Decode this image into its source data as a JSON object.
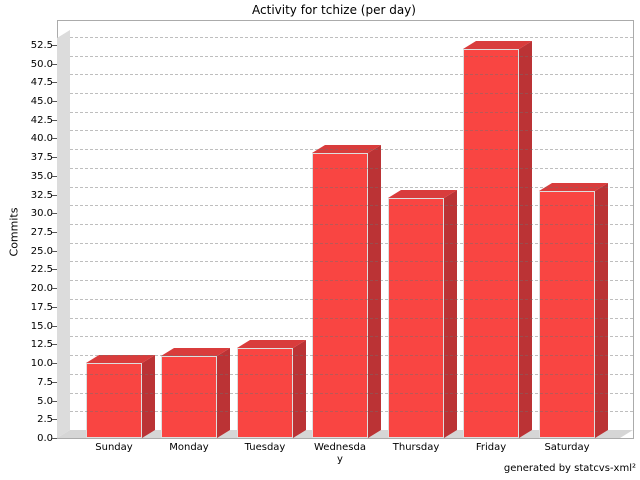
{
  "chart_data": {
    "type": "bar",
    "title": "Activity for tchize (per day)",
    "ylabel": "Commits",
    "xlabel": "",
    "categories": [
      "Sunday",
      "Monday",
      "Tuesday",
      "Wednesday",
      "Thursday",
      "Friday",
      "Saturday"
    ],
    "values": [
      10,
      11,
      12,
      38,
      32,
      52,
      33
    ],
    "ylim": [
      0,
      52.5
    ],
    "ytick_step": 2.5,
    "ytick_labels": [
      "0.0",
      "2.5",
      "5.0",
      "7.5",
      "10.0",
      "12.5",
      "15.0",
      "17.5",
      "20.0",
      "22.5",
      "25.0",
      "27.5",
      "30.0",
      "32.5",
      "35.0",
      "37.5",
      "40.0",
      "42.5",
      "45.0",
      "47.5",
      "50.0",
      "52.5"
    ],
    "grid": "dashed-horizontal",
    "legend": "none",
    "style": "3d-bars",
    "credit": "generated by statcvs-xml²",
    "colors": {
      "bar_front": "#f94542",
      "bar_top": "#d93c3c",
      "bar_side": "#bb3335",
      "wall": "#dcdcdc",
      "outline": "#ababab",
      "background": "#ffffff"
    }
  }
}
